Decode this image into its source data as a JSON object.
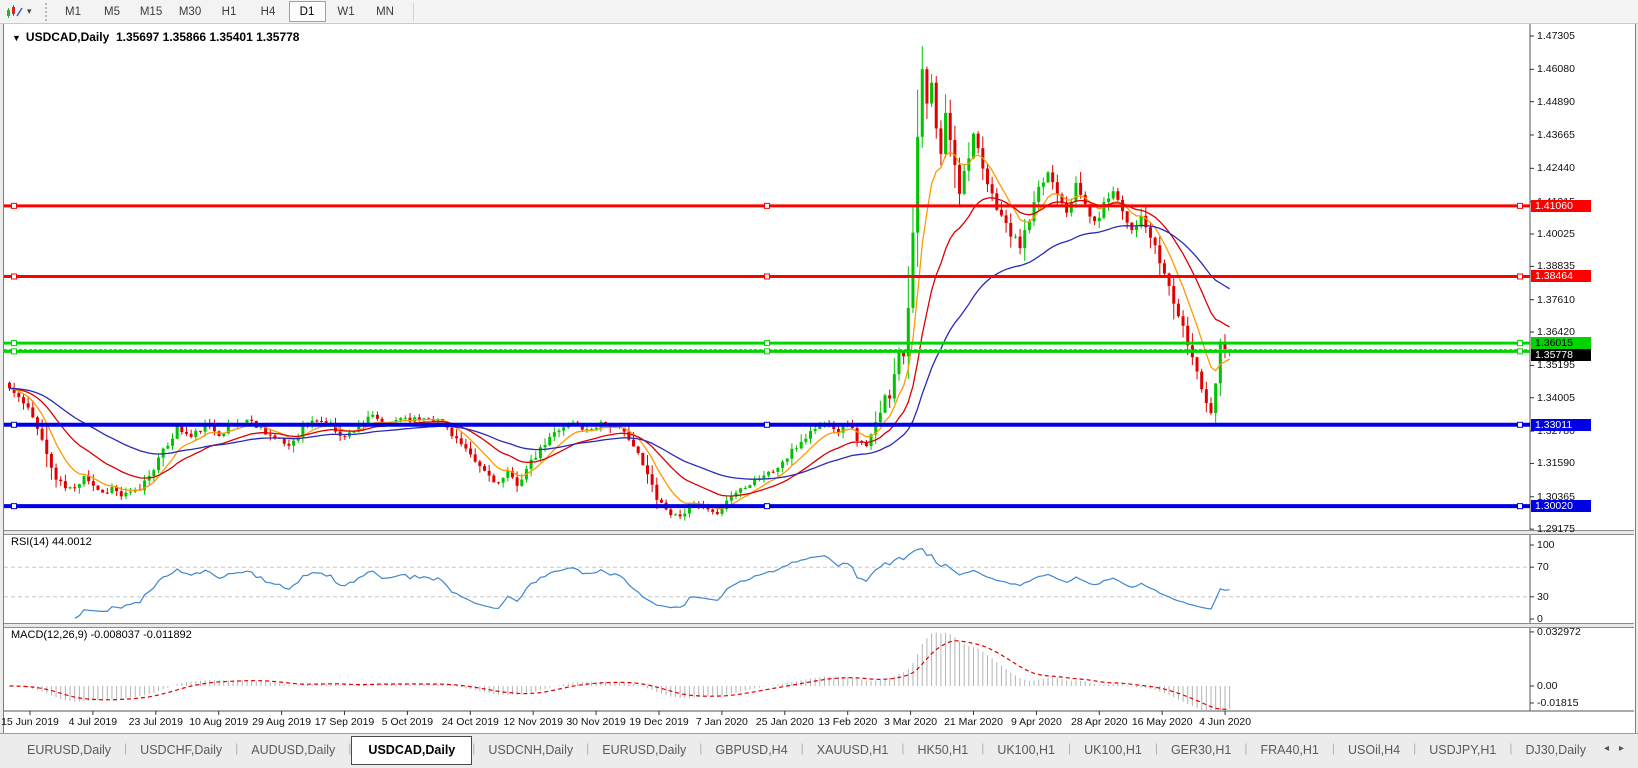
{
  "toolbar": {
    "dropdown_caret": "▾",
    "timeframes": [
      {
        "label": "M1",
        "active": false
      },
      {
        "label": "M5",
        "active": false
      },
      {
        "label": "M15",
        "active": false
      },
      {
        "label": "M30",
        "active": false
      },
      {
        "label": "H1",
        "active": false
      },
      {
        "label": "H4",
        "active": false
      },
      {
        "label": "D1",
        "active": true
      },
      {
        "label": "W1",
        "active": false
      },
      {
        "label": "MN",
        "active": false
      }
    ]
  },
  "chart": {
    "title_symbol": "USDCAD,Daily",
    "title_ohlc": "1.35697 1.35866 1.35401 1.35778"
  },
  "chart_data": {
    "type": "candlestick",
    "symbol": "USDCAD",
    "timeframe": "Daily",
    "ohlc_display": {
      "open": 1.35697,
      "high": 1.35866,
      "low": 1.35401,
      "close": 1.35778
    },
    "bull_color": "#00C400",
    "bear_color": "#E00000",
    "price_axis_ticks": [
      "1.47305",
      "1.46080",
      "1.44890",
      "1.43665",
      "1.42440",
      "1.41215",
      "1.40025",
      "1.38835",
      "1.37610",
      "1.36420",
      "1.35195",
      "1.34005",
      "1.32780",
      "1.31590",
      "1.30365",
      "1.29175"
    ],
    "date_axis_labels": [
      "15 Jun 2019",
      "4 Jul 2019",
      "23 Jul 2019",
      "10 Aug 2019",
      "29 Aug 2019",
      "17 Sep 2019",
      "5 Oct 2019",
      "24 Oct 2019",
      "12 Nov 2019",
      "30 Nov 2019",
      "19 Dec 2019",
      "7 Jan 2020",
      "25 Jan 2020",
      "13 Feb 2020",
      "3 Mar 2020",
      "21 Mar 2020",
      "9 Apr 2020",
      "28 Apr 2020",
      "16 May 2020",
      "4 Jun 2020"
    ],
    "horizontal_lines": [
      {
        "value": 1.4106,
        "label": "1.41060",
        "color": "#FF0000",
        "thickness": 3,
        "text": "#ffffff"
      },
      {
        "value": 1.38464,
        "label": "1.38464",
        "color": "#FF0000",
        "thickness": 3,
        "text": "#ffffff"
      },
      {
        "value": 1.36015,
        "label": "1.36015",
        "color": "#00D500",
        "thickness": 3,
        "text": "#000000"
      },
      {
        "value": 1.3571,
        "label": "",
        "color": "#00D500",
        "thickness": 3,
        "text": "#000000"
      },
      {
        "value": 1.33011,
        "label": "1.33011",
        "color": "#0000E6",
        "thickness": 4,
        "text": "#ffffff"
      },
      {
        "value": 1.3002,
        "label": "1.30020",
        "color": "#0000E6",
        "thickness": 4,
        "text": "#ffffff"
      }
    ],
    "current_price": {
      "value": 1.35778,
      "label": "1.35778",
      "box_color": "#000000",
      "text": "#ffffff"
    },
    "candles": {
      "count": 263,
      "seed": 11,
      "peak_wick": 0.0085,
      "keypoints": [
        [
          0,
          1.3435
        ],
        [
          2,
          1.34
        ],
        [
          4,
          1.3355
        ],
        [
          6,
          1.33
        ],
        [
          8,
          1.319
        ],
        [
          10,
          1.31
        ],
        [
          12,
          1.307
        ],
        [
          14,
          1.3065
        ],
        [
          16,
          1.312
        ],
        [
          18,
          1.308
        ],
        [
          20,
          1.305
        ],
        [
          22,
          1.307
        ],
        [
          24,
          1.304
        ],
        [
          26,
          1.3048
        ],
        [
          28,
          1.3065
        ],
        [
          30,
          1.312
        ],
        [
          33,
          1.32
        ],
        [
          36,
          1.329
        ],
        [
          39,
          1.3255
        ],
        [
          42,
          1.33
        ],
        [
          45,
          1.327
        ],
        [
          48,
          1.33
        ],
        [
          51,
          1.332
        ],
        [
          54,
          1.329
        ],
        [
          57,
          1.325
        ],
        [
          60,
          1.3225
        ],
        [
          63,
          1.329
        ],
        [
          66,
          1.332
        ],
        [
          69,
          1.33
        ],
        [
          72,
          1.3255
        ],
        [
          75,
          1.33
        ],
        [
          78,
          1.333
        ],
        [
          81,
          1.33
        ],
        [
          84,
          1.333
        ],
        [
          87,
          1.332
        ],
        [
          90,
          1.333
        ],
        [
          93,
          1.331
        ],
        [
          96,
          1.325
        ],
        [
          99,
          1.318
        ],
        [
          102,
          1.313
        ],
        [
          105,
          1.3085
        ],
        [
          107,
          1.312
        ],
        [
          109,
          1.3085
        ],
        [
          112,
          1.316
        ],
        [
          115,
          1.323
        ],
        [
          118,
          1.329
        ],
        [
          121,
          1.331
        ],
        [
          124,
          1.328
        ],
        [
          127,
          1.331
        ],
        [
          130,
          1.329
        ],
        [
          133,
          1.326
        ],
        [
          136,
          1.315
        ],
        [
          139,
          1.304
        ],
        [
          141,
          1.299
        ],
        [
          143,
          1.2965
        ],
        [
          145,
          1.2985
        ],
        [
          147,
          1.301
        ],
        [
          149,
          1.299
        ],
        [
          151,
          1.297
        ],
        [
          153,
          1.3
        ],
        [
          155,
          1.304
        ],
        [
          158,
          1.308
        ],
        [
          161,
          1.311
        ],
        [
          164,
          1.313
        ],
        [
          167,
          1.318
        ],
        [
          170,
          1.324
        ],
        [
          173,
          1.329
        ],
        [
          176,
          1.331
        ],
        [
          178,
          1.328
        ],
        [
          180,
          1.331
        ],
        [
          182,
          1.325
        ],
        [
          184,
          1.3215
        ],
        [
          186,
          1.33
        ],
        [
          188,
          1.342
        ],
        [
          189,
          1.339
        ],
        [
          190,
          1.35
        ],
        [
          191,
          1.358
        ],
        [
          192,
          1.356
        ],
        [
          193,
          1.376
        ],
        [
          194,
          1.398
        ],
        [
          195,
          1.435
        ],
        [
          196,
          1.46
        ],
        [
          197,
          1.448
        ],
        [
          198,
          1.455
        ],
        [
          199,
          1.438
        ],
        [
          200,
          1.43
        ],
        [
          201,
          1.444
        ],
        [
          202,
          1.436
        ],
        [
          203,
          1.427
        ],
        [
          204,
          1.416
        ],
        [
          205,
          1.423
        ],
        [
          206,
          1.43
        ],
        [
          207,
          1.437
        ],
        [
          208,
          1.43
        ],
        [
          209,
          1.423
        ],
        [
          211,
          1.414
        ],
        [
          213,
          1.407
        ],
        [
          215,
          1.4
        ],
        [
          217,
          1.396
        ],
        [
          219,
          1.405
        ],
        [
          221,
          1.416
        ],
        [
          223,
          1.423
        ],
        [
          225,
          1.416
        ],
        [
          227,
          1.409
        ],
        [
          229,
          1.418
        ],
        [
          231,
          1.411
        ],
        [
          233,
          1.404
        ],
        [
          235,
          1.411
        ],
        [
          237,
          1.417
        ],
        [
          239,
          1.409
        ],
        [
          241,
          1.402
        ],
        [
          243,
          1.406
        ],
        [
          245,
          1.399
        ],
        [
          247,
          1.39
        ],
        [
          249,
          1.381
        ],
        [
          251,
          1.37
        ],
        [
          253,
          1.36
        ],
        [
          255,
          1.35
        ],
        [
          257,
          1.339
        ],
        [
          258,
          1.334
        ],
        [
          259,
          1.348
        ],
        [
          260,
          1.362
        ],
        [
          261,
          1.356
        ],
        [
          262,
          1.3578
        ]
      ]
    },
    "moving_averages": [
      {
        "name": "fast-ma",
        "period": 8,
        "color": "#FF9900"
      },
      {
        "name": "medium-ma",
        "period": 20,
        "color": "#DD0000"
      },
      {
        "name": "slow-ma",
        "period": 45,
        "color": "#2A2AB8"
      }
    ],
    "rsi": {
      "label": "RSI(14) 44.0012",
      "period": 14,
      "value": 44.0012,
      "color": "#3E86D0",
      "levels": [
        "100",
        "70",
        "30",
        "0"
      ],
      "overbought": 70,
      "oversold": 30
    },
    "macd": {
      "label": "MACD(12,26,9) -0.008037 -0.011892",
      "fast": 12,
      "slow": 26,
      "signal_period": 9,
      "macd_value": -0.008037,
      "signal_value": -0.011892,
      "axis_labels": [
        "0.032972",
        "0.00",
        "-0.01815"
      ],
      "histogram_color": "#B4B4B4",
      "signal_color": "#E00000"
    }
  },
  "tabs": {
    "items": [
      "EURUSD,Daily",
      "USDCHF,Daily",
      "AUDUSD,Daily",
      "USDCAD,Daily",
      "USDCNH,Daily",
      "EURUSD,Daily",
      "GBPUSD,H4",
      "XAUUSD,H1",
      "HK50,H1",
      "UK100,H1",
      "UK100,H1",
      "GER30,H1",
      "FRA40,H1",
      "USOil,H4",
      "USDJPY,H1",
      "DJ30,Daily"
    ],
    "active_index": 3,
    "scroll_left": "◂",
    "scroll_right": "▸"
  }
}
